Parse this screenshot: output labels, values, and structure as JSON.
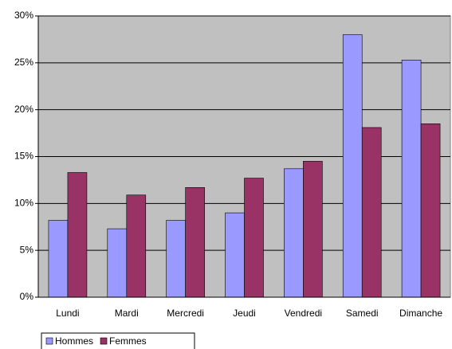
{
  "chart_data": {
    "type": "bar",
    "categories": [
      "Lundi",
      "Mardi",
      "Mercredi",
      "Jeudi",
      "Vendredi",
      "Samedi",
      "Dimanche"
    ],
    "series": [
      {
        "name": "Hommes",
        "color": "#9999ff",
        "values": [
          8.2,
          7.3,
          8.2,
          9.0,
          13.7,
          28.0,
          25.3
        ]
      },
      {
        "name": "Femmes",
        "color": "#993366",
        "values": [
          13.3,
          10.9,
          11.7,
          12.7,
          14.5,
          18.1,
          18.5
        ]
      }
    ],
    "ylim": [
      0,
      30
    ],
    "yticks": [
      {
        "value": 0,
        "label": "0%"
      },
      {
        "value": 5,
        "label": "5%"
      },
      {
        "value": 10,
        "label": "10%"
      },
      {
        "value": 15,
        "label": "15%"
      },
      {
        "value": 20,
        "label": "20%"
      },
      {
        "value": 25,
        "label": "25%"
      },
      {
        "value": 30,
        "label": "30%"
      }
    ],
    "grid": true,
    "legend": "bottom-left"
  }
}
